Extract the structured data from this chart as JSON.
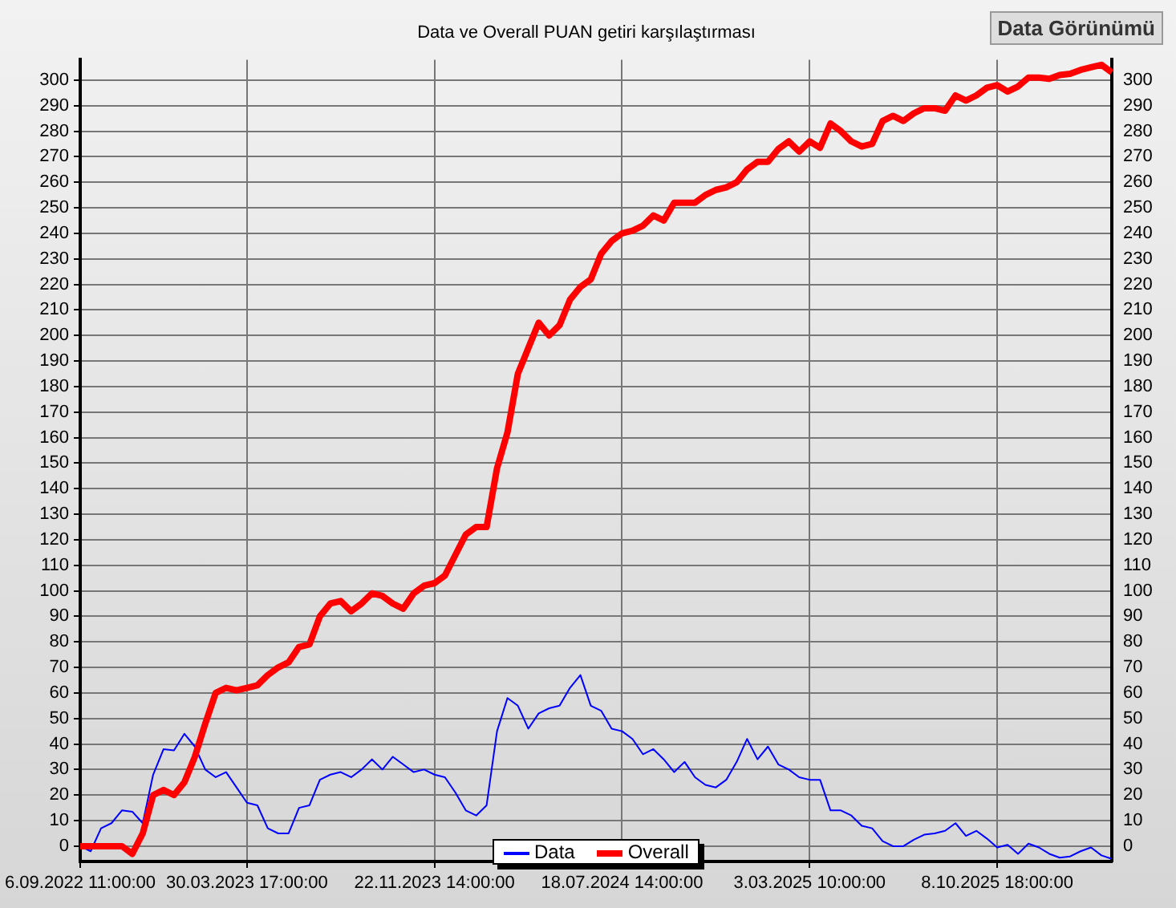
{
  "chart_data": {
    "type": "line",
    "title": "Data ve Overall PUAN getiri karşılaştırması",
    "categories": [
      "6.09.2022 11:00:00",
      null,
      null,
      null,
      null,
      null,
      null,
      null,
      null,
      null,
      null,
      null,
      null,
      null,
      null,
      null,
      "30.03.2023 17:00:00",
      null,
      null,
      null,
      null,
      null,
      null,
      null,
      null,
      null,
      null,
      null,
      null,
      null,
      null,
      null,
      null,
      null,
      "22.11.2023 14:00:00",
      null,
      null,
      null,
      null,
      null,
      null,
      null,
      null,
      null,
      null,
      null,
      null,
      null,
      null,
      null,
      null,
      null,
      "18.07.2024 14:00:00",
      null,
      null,
      null,
      null,
      null,
      null,
      null,
      null,
      null,
      null,
      null,
      null,
      null,
      null,
      null,
      null,
      null,
      "3.03.2025 10:00:00",
      null,
      null,
      null,
      null,
      null,
      null,
      null,
      null,
      null,
      null,
      null,
      null,
      null,
      null,
      null,
      null,
      null,
      "8.10.2025 18:00:00",
      null,
      null,
      null,
      null,
      null,
      null,
      null,
      null,
      null,
      null,
      null
    ],
    "series": [
      {
        "name": "Data",
        "color": "#0000ff",
        "values": [
          0,
          -2,
          7,
          9,
          14,
          13.5,
          9,
          28,
          38,
          37.5,
          44,
          39,
          30,
          27,
          29,
          23,
          17,
          16,
          7,
          5,
          5,
          15,
          16,
          26,
          28,
          29,
          27,
          30,
          34,
          30,
          35,
          32,
          29,
          30,
          28,
          27,
          21,
          14,
          12,
          16,
          45,
          58,
          55,
          46,
          52,
          54,
          55,
          62,
          67,
          55,
          53,
          46,
          45,
          42,
          36,
          38,
          34,
          29,
          33,
          27,
          24,
          23,
          26,
          33,
          42,
          34,
          39,
          32,
          30,
          27,
          26,
          26,
          14,
          14,
          12,
          8,
          7,
          2,
          0,
          0,
          2.5,
          4.5,
          5,
          6,
          9,
          4,
          6,
          3,
          -0.5,
          0.5,
          -3,
          1,
          -0.5,
          -3,
          -4.5,
          -4,
          -2,
          -0.5,
          -3.6,
          -5
        ]
      },
      {
        "name": "Overall",
        "color": "#ff0000",
        "values": [
          0,
          0,
          0,
          0,
          0,
          -3,
          5,
          20,
          22,
          20,
          25,
          35,
          48,
          60,
          62,
          61,
          62,
          63,
          67,
          70,
          72,
          78,
          79,
          90,
          95,
          96,
          92,
          95,
          99,
          98,
          95,
          93,
          99,
          102,
          103,
          106,
          114,
          122,
          125,
          125,
          148,
          162,
          185,
          195,
          205,
          200,
          204,
          214,
          219,
          222,
          232,
          237,
          240,
          241,
          243,
          247,
          245,
          252,
          252,
          252,
          255,
          257,
          258,
          260,
          265,
          268,
          268,
          273,
          276,
          272,
          276,
          273.5,
          283,
          280,
          276,
          274,
          275,
          284,
          286,
          284,
          287,
          289,
          289,
          288,
          294,
          292,
          294,
          297,
          298,
          295.5,
          297.5,
          301,
          301,
          300.5,
          302,
          302.5,
          304,
          305,
          306,
          303
        ]
      }
    ],
    "ylim": [
      -6,
      308
    ],
    "yticks": [
      0,
      10,
      20,
      30,
      40,
      50,
      60,
      70,
      80,
      90,
      100,
      110,
      120,
      130,
      140,
      150,
      160,
      170,
      180,
      190,
      200,
      210,
      220,
      230,
      240,
      250,
      260,
      270,
      280,
      290,
      300
    ],
    "y2lim": [
      -6,
      308
    ],
    "y2ticks": [
      0,
      10,
      20,
      30,
      40,
      50,
      60,
      70,
      80,
      90,
      100,
      110,
      120,
      130,
      140,
      150,
      160,
      170,
      180,
      190,
      200,
      210,
      220,
      230,
      240,
      250,
      260,
      270,
      280,
      290,
      300
    ],
    "grid": true,
    "legend": "bottom",
    "marker": "none",
    "line_style": "solid",
    "annotations": [
      "Data Görünümü"
    ]
  }
}
